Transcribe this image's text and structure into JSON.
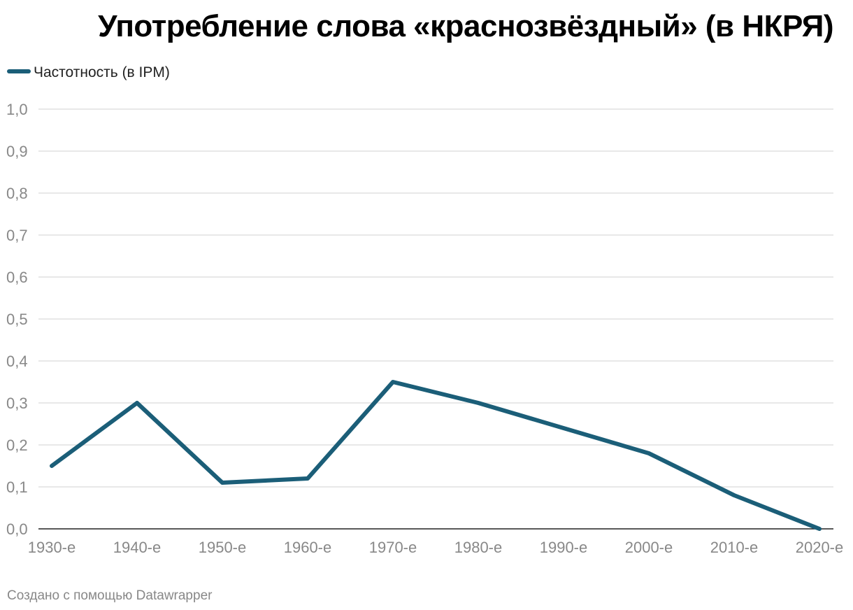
{
  "chart_data": {
    "type": "line",
    "title": "Употребление слова «краснозвёздный» (в НКРЯ)",
    "categories": [
      "1930-е",
      "1940-е",
      "1950-е",
      "1960-е",
      "1970-е",
      "1980-е",
      "1990-е",
      "2000-е",
      "2010-е",
      "2020-е"
    ],
    "series": [
      {
        "name": "Частотность (в IPM)",
        "values": [
          0.15,
          0.3,
          0.11,
          0.12,
          0.35,
          0.3,
          0.24,
          0.18,
          0.08,
          0.0
        ],
        "color": "#1b5e78"
      }
    ],
    "y_ticks": [
      "0,0",
      "0,1",
      "0,2",
      "0,3",
      "0,4",
      "0,5",
      "0,6",
      "0,7",
      "0,8",
      "0,9",
      "1,0"
    ],
    "ylim": [
      0,
      1.0
    ],
    "grid": true,
    "legend_position": "top-left",
    "footer": "Создано с помощью Datawrapper"
  }
}
